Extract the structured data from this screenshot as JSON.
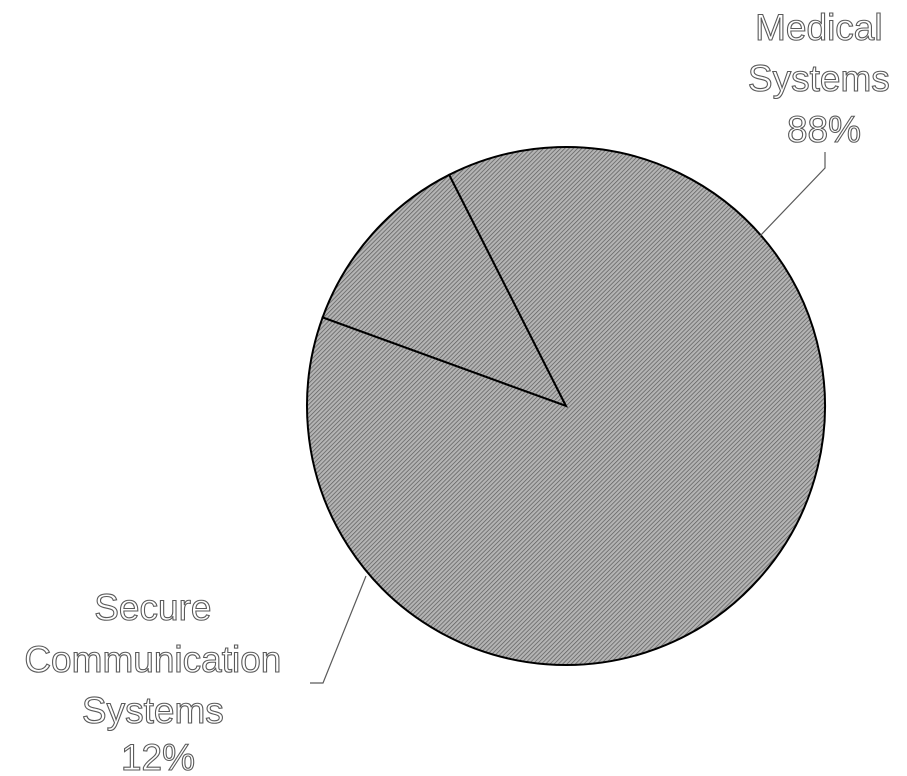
{
  "chart_data": {
    "type": "pie",
    "title": "",
    "slices": [
      {
        "label": "Secure Communication Systems",
        "label_lines": [
          "Secure",
          "Communication",
          "Systems",
          "12%"
        ],
        "value": 12
      },
      {
        "label": "Medical Systems",
        "label_lines": [
          "Medical",
          "Systems",
          "88%"
        ],
        "value": 88
      }
    ],
    "fill_pattern": "diagonal-hatch",
    "colors": {
      "slice_fill": "#b4b4b4",
      "hatch": "#5a5a5a",
      "outline": "#000000",
      "label_outline": "#5a5a5a",
      "leader_line": "#5a5a5a"
    },
    "legend": "none"
  }
}
